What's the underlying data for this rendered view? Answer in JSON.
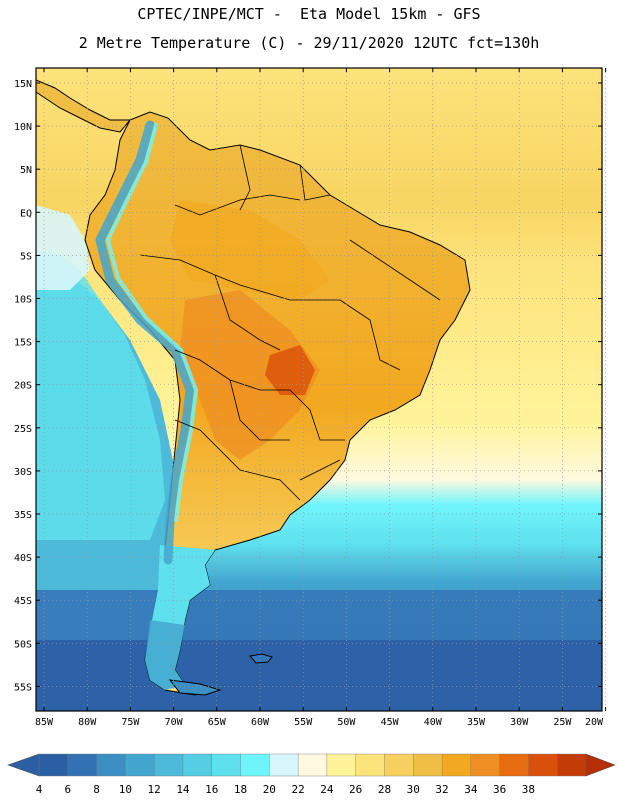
{
  "header": {
    "line1": "CPTEC/INPE/MCT -  Eta Model 15km - GFS",
    "line2": "2 Metre Temperature (C) - 29/11/2020 12UTC fct=130h"
  },
  "axes": {
    "lat_labels": [
      "15N",
      "10N",
      "5N",
      "EQ",
      "5S",
      "10S",
      "15S",
      "20S",
      "25S",
      "30S",
      "35S",
      "40S",
      "45S",
      "50S",
      "55S"
    ],
    "lon_labels": [
      "85W",
      "80W",
      "75W",
      "70W",
      "65W",
      "60W",
      "55W",
      "50W",
      "45W",
      "40W",
      "35W",
      "30W",
      "25W",
      "20W"
    ],
    "lat_values": [
      15,
      10,
      5,
      0,
      -5,
      -10,
      -15,
      -20,
      -25,
      -30,
      -35,
      -40,
      -45,
      -50,
      -55
    ],
    "lon_values": [
      -85,
      -80,
      -75,
      -70,
      -65,
      -60,
      -55,
      -50,
      -45,
      -40,
      -35,
      -30,
      -25,
      -20
    ]
  },
  "colorbar": {
    "values": [
      "4",
      "6",
      "8",
      "10",
      "12",
      "14",
      "16",
      "18",
      "20",
      "22",
      "24",
      "26",
      "28",
      "30",
      "32",
      "34",
      "36",
      "38"
    ],
    "colors": [
      "#2b5fa3",
      "#3171b4",
      "#3c8fc4",
      "#43a6cf",
      "#4cbad8",
      "#55cde3",
      "#5fe0ee",
      "#6ef5fb",
      "#d8f6fb",
      "#fff9e0",
      "#fff49a",
      "#fde37b",
      "#f7d05f",
      "#f0bd45",
      "#f2a81f",
      "#ef8e22",
      "#e86c12",
      "#d9500a",
      "#c33c06"
    ],
    "low_color": "#2b5fa3",
    "high_color": "#b52e04"
  },
  "colors": {
    "ocean_south_deep": "#2d62a8",
    "ocean_south_mid": "#3c8fc4",
    "ocean_south_light": "#4cbad8",
    "ocean_cyan": "#5fe0ee",
    "ocean_tropical": "#fde37b",
    "land_warm": "#f0bd45",
    "land_hot": "#ef8e22",
    "land_hotter": "#e86c12",
    "andes_cold": "#43a6cf",
    "boundary": "#000000",
    "grid": "#9a9a9a"
  }
}
